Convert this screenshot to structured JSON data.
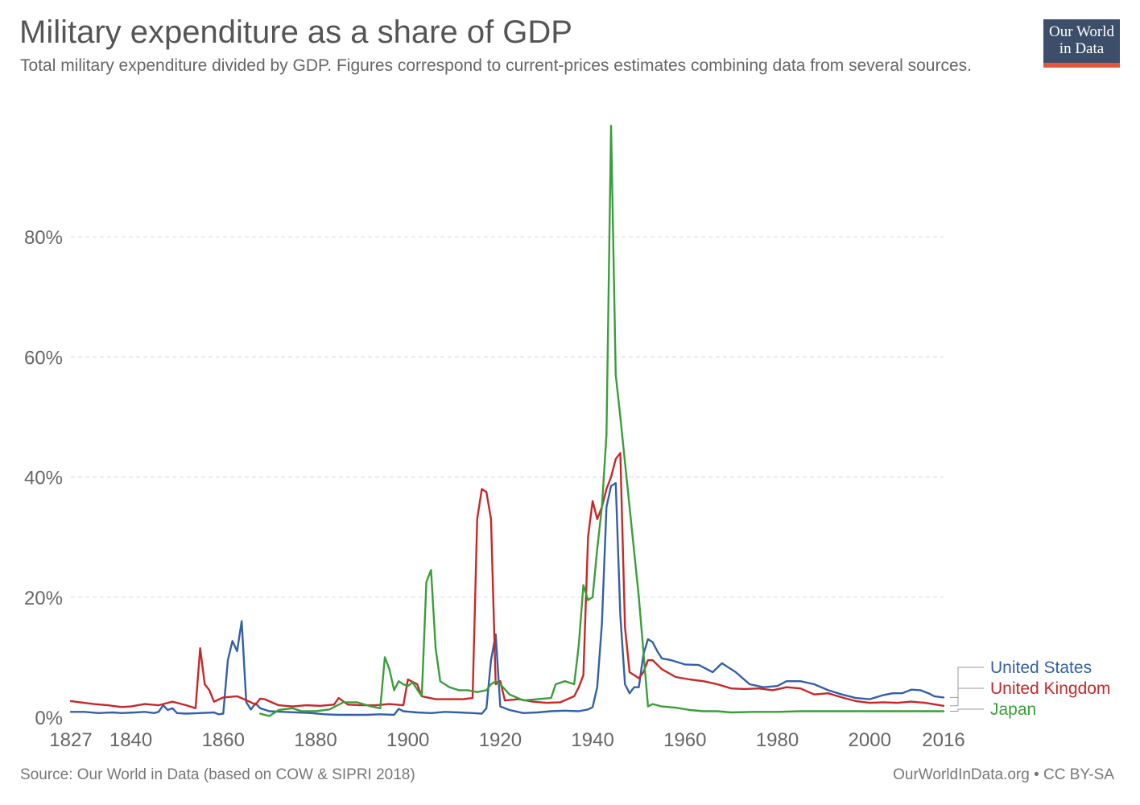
{
  "header": {
    "title": "Military expenditure as a share of GDP",
    "subtitle": "Total military expenditure divided by GDP. Figures correspond to current-prices estimates combining data from several sources."
  },
  "logo": {
    "line1": "Our World",
    "line2": "in Data"
  },
  "footer": {
    "source": "Source: Our World in Data (based on COW & SIPRI 2018)",
    "credit": "OurWorldInData.org • CC BY-SA"
  },
  "colors": {
    "United States": "#3360a9",
    "United Kingdom": "#ca2628",
    "Japan": "#3a9e3a"
  },
  "chart_data": {
    "type": "line",
    "title": "Military expenditure as a share of GDP",
    "xlabel": "",
    "ylabel": "",
    "xlim": [
      1827,
      2016
    ],
    "ylim": [
      0,
      100
    ],
    "x_ticks": [
      1827,
      1840,
      1860,
      1880,
      1900,
      1920,
      1940,
      1960,
      1980,
      2000,
      2016
    ],
    "y_ticks": [
      0,
      20,
      40,
      60,
      80
    ],
    "y_tick_labels": [
      "0%",
      "20%",
      "40%",
      "60%",
      "80%"
    ],
    "grid": true,
    "legend": "right, end of lines",
    "series": [
      {
        "name": "United States",
        "color": "#3360a9",
        "points": [
          [
            1827,
            0.9
          ],
          [
            1830,
            0.9
          ],
          [
            1833,
            0.7
          ],
          [
            1836,
            0.8
          ],
          [
            1838,
            0.7
          ],
          [
            1841,
            0.8
          ],
          [
            1843,
            0.9
          ],
          [
            1845,
            0.7
          ],
          [
            1846,
            0.9
          ],
          [
            1847,
            2.0
          ],
          [
            1848,
            1.2
          ],
          [
            1849,
            1.5
          ],
          [
            1850,
            0.7
          ],
          [
            1852,
            0.6
          ],
          [
            1855,
            0.7
          ],
          [
            1858,
            0.8
          ],
          [
            1859,
            0.5
          ],
          [
            1860,
            0.6
          ],
          [
            1861,
            9.5
          ],
          [
            1862,
            12.7
          ],
          [
            1863,
            11.0
          ],
          [
            1864,
            16.0
          ],
          [
            1865,
            2.5
          ],
          [
            1866,
            1.3
          ],
          [
            1867,
            2.3
          ],
          [
            1868,
            1.5
          ],
          [
            1870,
            1.0
          ],
          [
            1873,
            0.9
          ],
          [
            1876,
            0.8
          ],
          [
            1879,
            0.7
          ],
          [
            1882,
            0.5
          ],
          [
            1885,
            0.4
          ],
          [
            1888,
            0.4
          ],
          [
            1891,
            0.4
          ],
          [
            1894,
            0.5
          ],
          [
            1897,
            0.4
          ],
          [
            1898,
            1.4
          ],
          [
            1899,
            1.0
          ],
          [
            1902,
            0.8
          ],
          [
            1905,
            0.7
          ],
          [
            1908,
            0.9
          ],
          [
            1911,
            0.8
          ],
          [
            1914,
            0.7
          ],
          [
            1916,
            0.6
          ],
          [
            1917,
            1.5
          ],
          [
            1918,
            9.5
          ],
          [
            1919,
            13.8
          ],
          [
            1920,
            1.8
          ],
          [
            1922,
            1.2
          ],
          [
            1925,
            0.7
          ],
          [
            1928,
            0.8
          ],
          [
            1931,
            1.0
          ],
          [
            1934,
            1.1
          ],
          [
            1937,
            1.0
          ],
          [
            1939,
            1.3
          ],
          [
            1940,
            1.7
          ],
          [
            1941,
            5.0
          ],
          [
            1942,
            15.5
          ],
          [
            1943,
            35.0
          ],
          [
            1944,
            38.5
          ],
          [
            1945,
            39.0
          ],
          [
            1946,
            17.0
          ],
          [
            1947,
            5.5
          ],
          [
            1948,
            4.0
          ],
          [
            1949,
            5.0
          ],
          [
            1950,
            5.0
          ],
          [
            1951,
            10.5
          ],
          [
            1952,
            13.0
          ],
          [
            1953,
            12.5
          ],
          [
            1954,
            11.0
          ],
          [
            1955,
            9.8
          ],
          [
            1957,
            9.5
          ],
          [
            1960,
            8.8
          ],
          [
            1963,
            8.7
          ],
          [
            1966,
            7.5
          ],
          [
            1968,
            9.0
          ],
          [
            1971,
            7.5
          ],
          [
            1974,
            5.5
          ],
          [
            1977,
            5.0
          ],
          [
            1980,
            5.2
          ],
          [
            1982,
            6.0
          ],
          [
            1985,
            6.0
          ],
          [
            1988,
            5.5
          ],
          [
            1991,
            4.5
          ],
          [
            1994,
            3.8
          ],
          [
            1997,
            3.2
          ],
          [
            2000,
            3.0
          ],
          [
            2003,
            3.7
          ],
          [
            2005,
            4.0
          ],
          [
            2007,
            4.0
          ],
          [
            2009,
            4.6
          ],
          [
            2011,
            4.5
          ],
          [
            2013,
            3.9
          ],
          [
            2014,
            3.5
          ],
          [
            2016,
            3.3
          ]
        ]
      },
      {
        "name": "United Kingdom",
        "color": "#ca2628",
        "points": [
          [
            1827,
            2.7
          ],
          [
            1829,
            2.5
          ],
          [
            1832,
            2.2
          ],
          [
            1835,
            2.0
          ],
          [
            1838,
            1.7
          ],
          [
            1840,
            1.8
          ],
          [
            1843,
            2.2
          ],
          [
            1846,
            2.0
          ],
          [
            1849,
            2.6
          ],
          [
            1852,
            2.0
          ],
          [
            1854,
            1.5
          ],
          [
            1855,
            11.5
          ],
          [
            1856,
            5.5
          ],
          [
            1857,
            4.5
          ],
          [
            1858,
            2.6
          ],
          [
            1860,
            3.3
          ],
          [
            1863,
            3.5
          ],
          [
            1866,
            2.5
          ],
          [
            1867,
            2.1
          ],
          [
            1868,
            3.1
          ],
          [
            1869,
            3.0
          ],
          [
            1872,
            2.0
          ],
          [
            1875,
            1.8
          ],
          [
            1878,
            2.0
          ],
          [
            1881,
            1.9
          ],
          [
            1884,
            2.1
          ],
          [
            1885,
            3.2
          ],
          [
            1887,
            2.1
          ],
          [
            1890,
            2.0
          ],
          [
            1893,
            2.0
          ],
          [
            1896,
            2.2
          ],
          [
            1899,
            2.0
          ],
          [
            1900,
            6.3
          ],
          [
            1902,
            5.5
          ],
          [
            1903,
            3.5
          ],
          [
            1906,
            3.0
          ],
          [
            1909,
            3.0
          ],
          [
            1912,
            3.0
          ],
          [
            1914,
            3.2
          ],
          [
            1915,
            33.0
          ],
          [
            1916,
            38.0
          ],
          [
            1917,
            37.5
          ],
          [
            1918,
            33.0
          ],
          [
            1919,
            5.5
          ],
          [
            1920,
            6.0
          ],
          [
            1921,
            2.8
          ],
          [
            1924,
            3.0
          ],
          [
            1927,
            2.6
          ],
          [
            1930,
            2.4
          ],
          [
            1933,
            2.5
          ],
          [
            1936,
            3.5
          ],
          [
            1937,
            5.0
          ],
          [
            1938,
            7.0
          ],
          [
            1939,
            30.0
          ],
          [
            1940,
            36.0
          ],
          [
            1941,
            33.0
          ],
          [
            1942,
            35.0
          ],
          [
            1943,
            38.0
          ],
          [
            1944,
            40.0
          ],
          [
            1945,
            43.0
          ],
          [
            1946,
            44.0
          ],
          [
            1947,
            15.0
          ],
          [
            1948,
            7.5
          ],
          [
            1950,
            6.5
          ],
          [
            1951,
            7.5
          ],
          [
            1952,
            9.5
          ],
          [
            1953,
            9.5
          ],
          [
            1955,
            8.0
          ],
          [
            1958,
            6.7
          ],
          [
            1961,
            6.3
          ],
          [
            1964,
            6.0
          ],
          [
            1967,
            5.5
          ],
          [
            1970,
            4.8
          ],
          [
            1973,
            4.7
          ],
          [
            1976,
            4.8
          ],
          [
            1979,
            4.5
          ],
          [
            1982,
            5.0
          ],
          [
            1985,
            4.8
          ],
          [
            1988,
            3.8
          ],
          [
            1991,
            4.0
          ],
          [
            1994,
            3.3
          ],
          [
            1997,
            2.7
          ],
          [
            2000,
            2.4
          ],
          [
            2003,
            2.5
          ],
          [
            2006,
            2.4
          ],
          [
            2009,
            2.6
          ],
          [
            2012,
            2.4
          ],
          [
            2016,
            1.9
          ]
        ]
      },
      {
        "name": "Japan",
        "color": "#3a9e3a",
        "points": [
          [
            1868,
            0.6
          ],
          [
            1870,
            0.2
          ],
          [
            1872,
            1.2
          ],
          [
            1875,
            1.5
          ],
          [
            1877,
            1.0
          ],
          [
            1880,
            1.0
          ],
          [
            1883,
            1.3
          ],
          [
            1886,
            2.5
          ],
          [
            1889,
            2.5
          ],
          [
            1892,
            1.8
          ],
          [
            1894,
            1.5
          ],
          [
            1895,
            10.0
          ],
          [
            1896,
            8.0
          ],
          [
            1897,
            4.5
          ],
          [
            1898,
            6.0
          ],
          [
            1899,
            5.5
          ],
          [
            1900,
            5.2
          ],
          [
            1901,
            5.8
          ],
          [
            1903,
            3.5
          ],
          [
            1904,
            22.5
          ],
          [
            1905,
            24.5
          ],
          [
            1906,
            11.5
          ],
          [
            1907,
            6.0
          ],
          [
            1909,
            5.0
          ],
          [
            1911,
            4.5
          ],
          [
            1913,
            4.5
          ],
          [
            1915,
            4.2
          ],
          [
            1917,
            4.5
          ],
          [
            1918,
            5.5
          ],
          [
            1919,
            6.0
          ],
          [
            1920,
            5.5
          ],
          [
            1922,
            3.8
          ],
          [
            1925,
            2.8
          ],
          [
            1928,
            3.0
          ],
          [
            1931,
            3.2
          ],
          [
            1932,
            5.5
          ],
          [
            1934,
            6.0
          ],
          [
            1936,
            5.5
          ],
          [
            1937,
            12.0
          ],
          [
            1938,
            22.0
          ],
          [
            1939,
            19.5
          ],
          [
            1940,
            20.0
          ],
          [
            1941,
            28.0
          ],
          [
            1942,
            35.0
          ],
          [
            1943,
            47.0
          ],
          [
            1944,
            98.5
          ],
          [
            1945,
            57.0
          ],
          [
            1946,
            50.0
          ],
          [
            1948,
            35.0
          ],
          [
            1950,
            20.0
          ],
          [
            1952,
            1.8
          ],
          [
            1953,
            2.2
          ],
          [
            1955,
            1.8
          ],
          [
            1958,
            1.6
          ],
          [
            1961,
            1.2
          ],
          [
            1964,
            1.0
          ],
          [
            1967,
            1.0
          ],
          [
            1970,
            0.8
          ],
          [
            1975,
            0.9
          ],
          [
            1980,
            0.9
          ],
          [
            1985,
            1.0
          ],
          [
            1990,
            1.0
          ],
          [
            1995,
            1.0
          ],
          [
            2000,
            1.0
          ],
          [
            2005,
            1.0
          ],
          [
            2010,
            1.0
          ],
          [
            2016,
            1.0
          ]
        ]
      }
    ]
  }
}
